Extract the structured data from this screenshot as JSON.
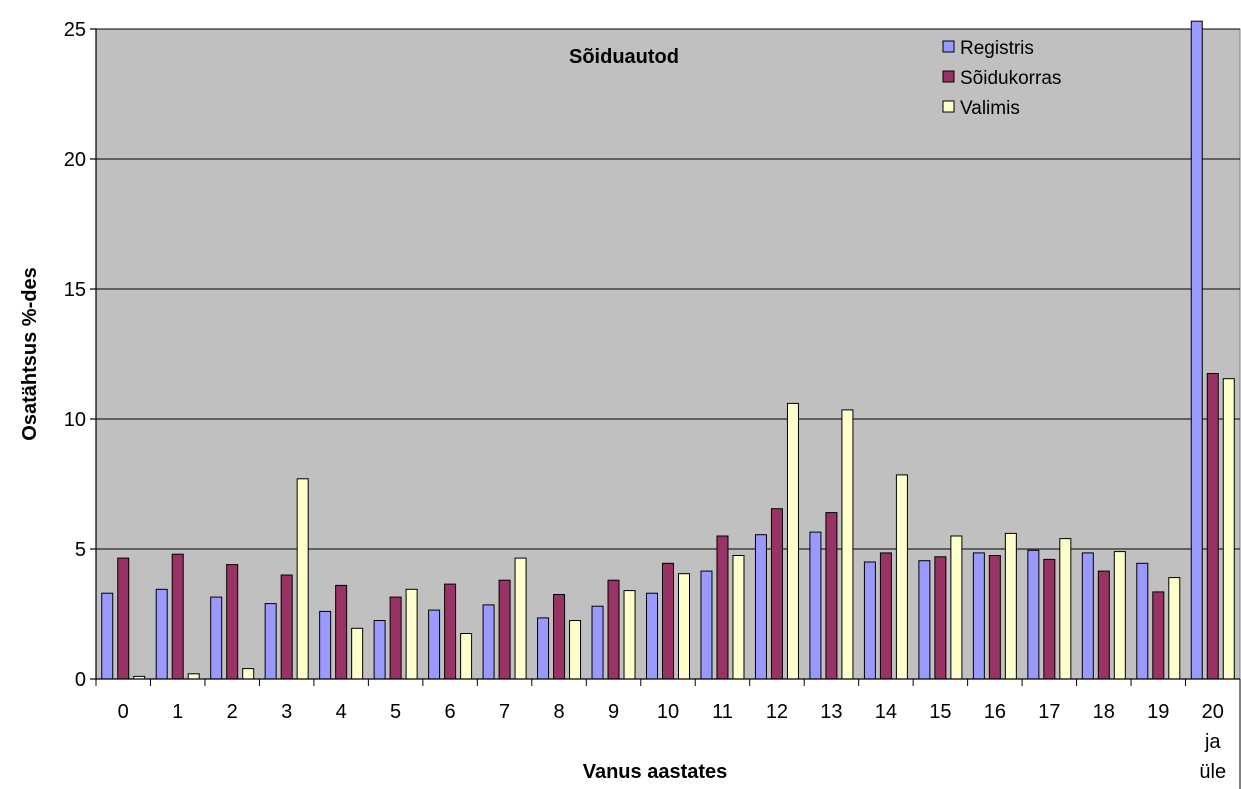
{
  "chart_data": {
    "type": "bar",
    "title": "Sõiduautod",
    "xlabel": "Vanus aastates",
    "ylabel": "Osatähtsus %-des",
    "ylim": [
      0,
      25
    ],
    "yticks": [
      "0",
      "5",
      "10",
      "15",
      "20",
      "25"
    ],
    "categories": [
      "0",
      "1",
      "2",
      "3",
      "4",
      "5",
      "6",
      "7",
      "8",
      "9",
      "10",
      "11",
      "12",
      "13",
      "14",
      "15",
      "16",
      "17",
      "18",
      "19",
      "20 ja üle"
    ],
    "category_lines": [
      [
        "0"
      ],
      [
        "1"
      ],
      [
        "2"
      ],
      [
        "3"
      ],
      [
        "4"
      ],
      [
        "5"
      ],
      [
        "6"
      ],
      [
        "7"
      ],
      [
        "8"
      ],
      [
        "9"
      ],
      [
        "10"
      ],
      [
        "11"
      ],
      [
        "12"
      ],
      [
        "13"
      ],
      [
        "14"
      ],
      [
        "15"
      ],
      [
        "16"
      ],
      [
        "17"
      ],
      [
        "18"
      ],
      [
        "19"
      ],
      [
        "20",
        "ja",
        "üle"
      ]
    ],
    "series": [
      {
        "name": "Registris",
        "color": "#9999ff",
        "values": [
          3.3,
          3.45,
          3.15,
          2.9,
          2.6,
          2.25,
          2.65,
          2.85,
          2.35,
          2.8,
          3.3,
          4.15,
          5.55,
          5.65,
          4.5,
          4.55,
          4.85,
          4.95,
          4.85,
          4.45,
          25.3
        ]
      },
      {
        "name": "Sõidukorras",
        "color": "#993366",
        "values": [
          4.65,
          4.8,
          4.4,
          4.0,
          3.6,
          3.15,
          3.65,
          3.8,
          3.25,
          3.8,
          4.45,
          5.5,
          6.55,
          6.4,
          4.85,
          4.7,
          4.75,
          4.6,
          4.15,
          3.35,
          11.75
        ]
      },
      {
        "name": "Valimis",
        "color": "#ffffcc",
        "values": [
          0.1,
          0.2,
          0.4,
          7.7,
          1.95,
          3.45,
          1.75,
          4.65,
          2.25,
          3.4,
          4.05,
          4.75,
          10.6,
          10.35,
          7.85,
          5.5,
          5.6,
          5.4,
          4.9,
          3.9,
          11.55
        ]
      }
    ],
    "grid": true,
    "legend_position": "top-right",
    "plot_background": "#c0c0c0"
  }
}
